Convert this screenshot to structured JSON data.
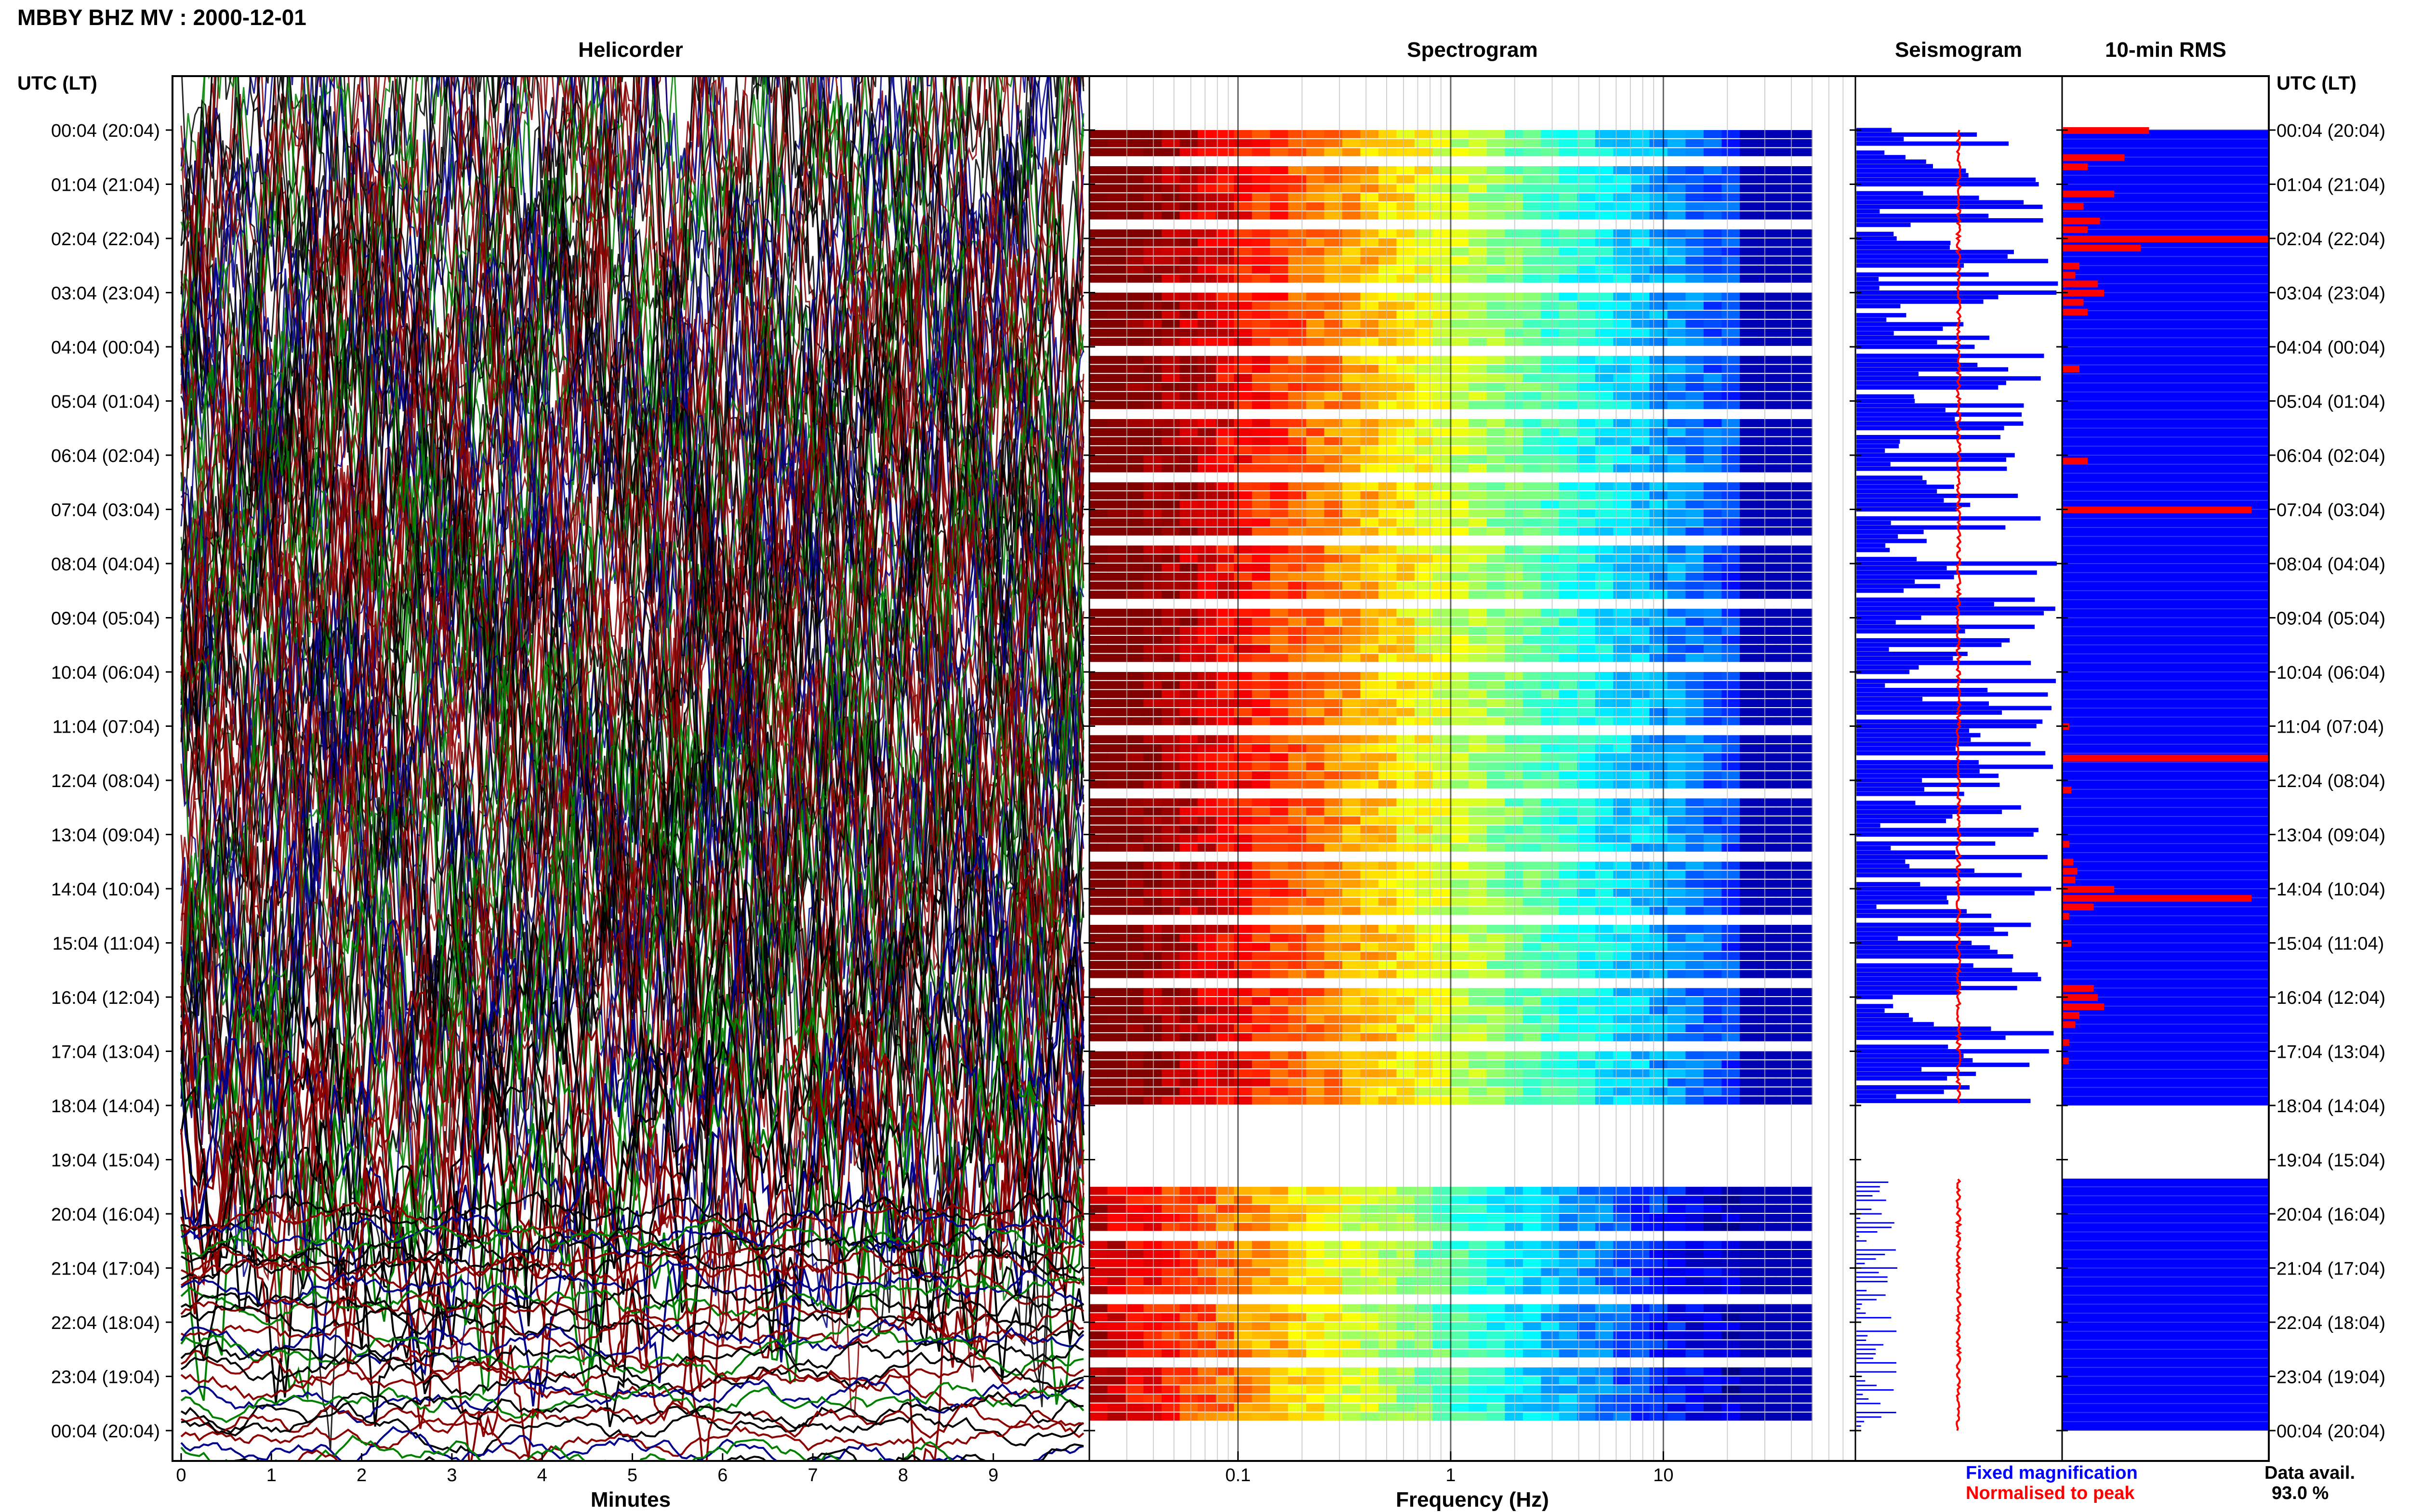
{
  "title": "MBBY BHZ MV : 2000-12-01",
  "panels": {
    "helicorder": "Helicorder",
    "spectrogram": "Spectrogram",
    "seismogram": "Seismogram",
    "rms": "10-min RMS"
  },
  "left_axis_header": "UTC (LT)",
  "right_axis_header": "UTC (LT)",
  "time_labels": [
    "00:04 (20:04)",
    "01:04 (21:04)",
    "02:04 (22:04)",
    "03:04 (23:04)",
    "04:04 (00:04)",
    "05:04 (01:04)",
    "06:04 (02:04)",
    "07:04 (03:04)",
    "08:04 (04:04)",
    "09:04 (05:04)",
    "10:04 (06:04)",
    "11:04 (07:04)",
    "12:04 (08:04)",
    "13:04 (09:04)",
    "14:04 (10:04)",
    "15:04 (11:04)",
    "16:04 (12:04)",
    "17:04 (13:04)",
    "18:04 (14:04)",
    "19:04 (15:04)",
    "20:04 (16:04)",
    "21:04 (17:04)",
    "22:04 (18:04)",
    "23:04 (19:04)",
    "00:04 (20:04)"
  ],
  "legend": {
    "fixed": "Fixed magnification",
    "normalised": "Normalised to peak",
    "avail_label": "Data avail.",
    "avail_value": "93.0 %"
  },
  "colors": {
    "helicorder_traces": [
      "#000000",
      "#8b0000",
      "#00008b",
      "#008000"
    ],
    "seismogram_fixed": "#0000ff",
    "seismogram_normalised": "#ff0000",
    "rms_background": "#0000ff",
    "rms_bar": "#ff0000"
  },
  "chart_data": [
    {
      "type": "line",
      "name": "helicorder",
      "xlabel": "Minutes",
      "xticks": [
        0,
        1,
        2,
        3,
        4,
        5,
        6,
        7,
        8,
        9
      ],
      "xlim": [
        0,
        10
      ],
      "rows": 25,
      "data_gap_hours": [
        18,
        19
      ],
      "high_activity_hours": [
        0,
        18
      ]
    },
    {
      "type": "heatmap",
      "name": "spectrogram",
      "xlabel": "Frequency (Hz)",
      "xscale": "log",
      "xticks": [
        0.1,
        1,
        10
      ],
      "xtick_labels": [
        "0.1",
        "1",
        "10"
      ],
      "xlim": [
        0.02,
        80
      ],
      "data_max_hz": 50,
      "colormap": "jet",
      "data_gap_hours": [
        18.0,
        19.35
      ]
    },
    {
      "type": "line",
      "name": "seismogram",
      "series": [
        "fixed magnification",
        "normalised to peak"
      ],
      "data_gap_hours": [
        18.0,
        19.35
      ]
    },
    {
      "type": "bar",
      "name": "10-min RMS",
      "orientation": "horizontal",
      "data_gap_hours": [
        18.0,
        19.35
      ],
      "spikes": [
        {
          "hour": 0.0,
          "value": 0.42
        },
        {
          "hour": 0.5,
          "value": 0.3
        },
        {
          "hour": 0.67,
          "value": 0.12
        },
        {
          "hour": 1.17,
          "value": 0.25
        },
        {
          "hour": 1.4,
          "value": 0.1
        },
        {
          "hour": 1.67,
          "value": 0.18
        },
        {
          "hour": 1.83,
          "value": 0.12
        },
        {
          "hour": 2.0,
          "value": 1.0
        },
        {
          "hour": 2.17,
          "value": 0.38
        },
        {
          "hour": 2.5,
          "value": 0.08
        },
        {
          "hour": 2.67,
          "value": 0.06
        },
        {
          "hour": 2.83,
          "value": 0.17
        },
        {
          "hour": 3.0,
          "value": 0.2
        },
        {
          "hour": 3.17,
          "value": 0.1
        },
        {
          "hour": 3.35,
          "value": 0.12
        },
        {
          "hour": 4.4,
          "value": 0.08
        },
        {
          "hour": 6.1,
          "value": 0.12
        },
        {
          "hour": 7.0,
          "value": 0.92
        },
        {
          "hour": 11.0,
          "value": 0.03
        },
        {
          "hour": 11.58,
          "value": 1.0
        },
        {
          "hour": 12.17,
          "value": 0.04
        },
        {
          "hour": 13.17,
          "value": 0.03
        },
        {
          "hour": 13.5,
          "value": 0.05
        },
        {
          "hour": 13.67,
          "value": 0.07
        },
        {
          "hour": 13.83,
          "value": 0.06
        },
        {
          "hour": 14.0,
          "value": 0.25
        },
        {
          "hour": 14.17,
          "value": 0.92
        },
        {
          "hour": 14.33,
          "value": 0.15
        },
        {
          "hour": 14.5,
          "value": 0.03
        },
        {
          "hour": 15.0,
          "value": 0.04
        },
        {
          "hour": 15.83,
          "value": 0.15
        },
        {
          "hour": 16.0,
          "value": 0.17
        },
        {
          "hour": 16.17,
          "value": 0.2
        },
        {
          "hour": 16.33,
          "value": 0.08
        },
        {
          "hour": 16.5,
          "value": 0.06
        },
        {
          "hour": 16.83,
          "value": 0.03
        },
        {
          "hour": 17.17,
          "value": 0.02
        }
      ]
    }
  ]
}
